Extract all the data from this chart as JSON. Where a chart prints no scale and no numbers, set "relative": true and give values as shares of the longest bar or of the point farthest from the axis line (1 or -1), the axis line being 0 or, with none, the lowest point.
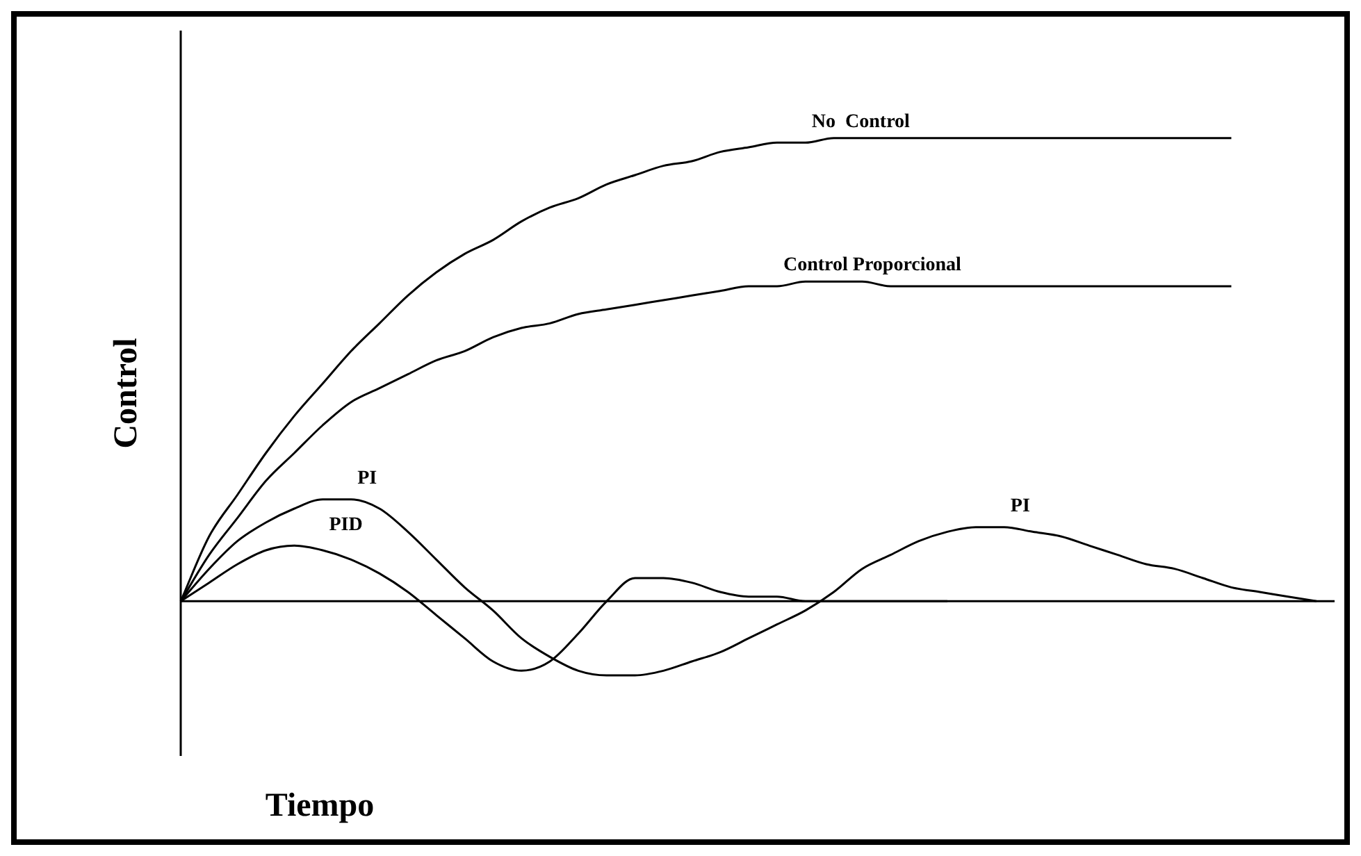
{
  "chart_data": {
    "type": "line",
    "relative": true,
    "xlabel": "Tiempo",
    "ylabel": "Control",
    "legend": false,
    "marker": "none",
    "line_style": "solid",
    "categories": [
      null,
      null,
      null,
      null,
      null,
      null,
      null,
      null,
      null,
      null,
      null,
      null,
      null,
      null,
      null,
      null,
      null,
      null,
      null,
      null,
      null,
      null,
      null,
      null,
      null,
      null,
      null,
      null,
      null,
      null,
      null,
      null,
      null,
      null,
      null,
      null,
      null,
      null,
      null,
      null,
      null
    ],
    "series": [
      {
        "name": "No  Control",
        "color": "#000000",
        "values": [
          0,
          0.14,
          0.23,
          0.32,
          0.4,
          0.47,
          0.54,
          0.6,
          0.66,
          0.71,
          0.75,
          0.78,
          0.82,
          0.85,
          0.87,
          0.9,
          0.92,
          0.94,
          0.95,
          0.97,
          0.98,
          0.99,
          0.99,
          1,
          1,
          1,
          1,
          1,
          1,
          1,
          1,
          1,
          1,
          1,
          1,
          1,
          1,
          1,
          null,
          null,
          null
        ]
      },
      {
        "name": "Control Proporcional",
        "color": "#000000",
        "values": [
          0,
          0.1,
          0.18,
          0.26,
          0.32,
          0.38,
          0.43,
          0.46,
          0.49,
          0.52,
          0.54,
          0.57,
          0.59,
          0.6,
          0.62,
          0.63,
          0.64,
          0.65,
          0.66,
          0.67,
          0.68,
          0.68,
          0.69,
          0.69,
          0.69,
          0.68,
          0.68,
          0.68,
          0.68,
          0.68,
          0.68,
          0.68,
          0.68,
          0.68,
          0.68,
          0.68,
          0.68,
          0.68,
          null,
          null,
          null
        ]
      },
      {
        "name": "PI",
        "color": "#000000",
        "values": [
          0,
          0.07,
          0.13,
          0.17,
          0.2,
          0.22,
          0.22,
          0.2,
          0.15,
          0.09,
          0.03,
          -0.02,
          -0.08,
          -0.12,
          -0.15,
          -0.16,
          -0.16,
          -0.15,
          -0.13,
          -0.11,
          -0.08,
          -0.05,
          -0.02,
          0.02,
          0.07,
          0.1,
          0.13,
          0.15,
          0.16,
          0.16,
          0.15,
          0.14,
          0.12,
          0.1,
          0.08,
          0.07,
          0.05,
          0.03,
          0.02,
          0.01,
          0
        ]
      },
      {
        "name": "PID",
        "color": "#000000",
        "values": [
          0,
          0.04,
          0.08,
          0.11,
          0.12,
          0.11,
          0.09,
          0.06,
          0.02,
          -0.03,
          -0.08,
          -0.13,
          -0.15,
          -0.13,
          -0.07,
          0,
          0.05,
          0.05,
          0.04,
          0.02,
          0.01,
          0.01,
          0,
          0,
          0,
          0,
          0,
          0,
          null,
          null,
          null,
          null,
          null,
          null,
          null,
          null,
          null,
          null,
          null,
          null,
          null
        ]
      }
    ]
  }
}
